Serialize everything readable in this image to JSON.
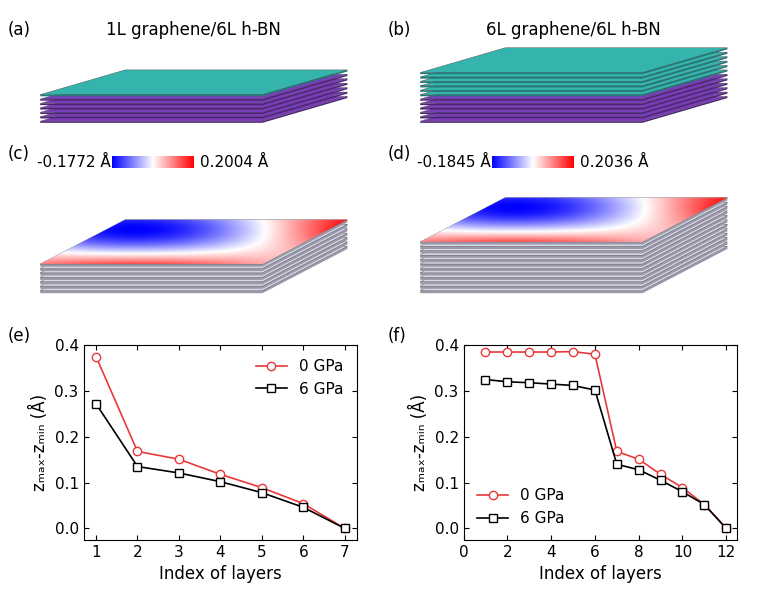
{
  "panels": [
    {
      "label": "(a)",
      "title": "1L graphene/6L h-BN",
      "graphene_layers": 1,
      "hbn_layers": 6
    },
    {
      "label": "(b)",
      "title": "6L graphene/6L h-BN",
      "graphene_layers": 6,
      "hbn_layers": 6
    },
    {
      "label": "(c)",
      "layers": 7,
      "colorbar": {
        "range": [
          -0.1772,
          0.2004
        ],
        "labels": [
          "-0.1772 Å",
          "0.2004 Å"
        ]
      }
    },
    {
      "label": "(d)",
      "layers": 12,
      "colorbar": {
        "range": [
          -0.1845,
          0.2036
        ],
        "labels": [
          "-0.1845 Å",
          "0.2036 Å"
        ]
      }
    }
  ],
  "chart_data": [
    {
      "type": "line",
      "title": "(e)",
      "x_label": "Index of layers",
      "y_label": "zₘₐₓ-zₘᵢₙ (Å)",
      "x": [
        1,
        2,
        3,
        4,
        5,
        6,
        7
      ],
      "series": [
        {
          "name": "0 GPa",
          "color": "#e8393a",
          "marker": "circle",
          "values": [
            0.375,
            0.168,
            0.151,
            0.118,
            0.089,
            0.054,
            0.0
          ]
        },
        {
          "name": "6 GPa",
          "color": "#000000",
          "marker": "square",
          "values": [
            0.272,
            0.135,
            0.121,
            0.102,
            0.078,
            0.046,
            0.0
          ]
        }
      ],
      "xlim": [
        0.7,
        7.3
      ],
      "xticks": [
        1,
        2,
        3,
        4,
        5,
        6,
        7
      ],
      "ylim": [
        -0.025,
        0.4
      ],
      "yticks": [
        {
          "value": 0,
          "label": "0.0"
        },
        {
          "value": 0.1,
          "label": "0.1"
        },
        {
          "value": 0.2,
          "label": "0.2"
        },
        {
          "value": 0.3,
          "label": "0.3"
        },
        {
          "value": 0.4,
          "label": "0.4"
        }
      ],
      "legend": "upper right"
    },
    {
      "type": "line",
      "title": "(f)",
      "x_label": "Index of layers",
      "y_label": "zₘₐₓ-zₘᵢₙ (Å)",
      "x": [
        1,
        2,
        3,
        4,
        5,
        6,
        7,
        8,
        9,
        10,
        11,
        12
      ],
      "series": [
        {
          "name": "0 GPa",
          "color": "#e8393a",
          "marker": "circle",
          "values": [
            0.385,
            0.385,
            0.385,
            0.385,
            0.386,
            0.38,
            0.168,
            0.151,
            0.118,
            0.089,
            0.052,
            0.0
          ]
        },
        {
          "name": "6 GPa",
          "color": "#000000",
          "marker": "square",
          "values": [
            0.325,
            0.32,
            0.318,
            0.315,
            0.312,
            0.302,
            0.14,
            0.128,
            0.105,
            0.08,
            0.052,
            0.0
          ]
        }
      ],
      "xlim": [
        0,
        12.5
      ],
      "xticks": [
        0,
        2,
        4,
        6,
        8,
        10,
        12
      ],
      "ylim": [
        -0.025,
        0.4
      ],
      "yticks": [
        {
          "value": 0,
          "label": "0.0"
        },
        {
          "value": 0.1,
          "label": "0.1"
        },
        {
          "value": 0.2,
          "label": "0.2"
        },
        {
          "value": 0.3,
          "label": "0.3"
        },
        {
          "value": 0.4,
          "label": "0.4"
        }
      ],
      "legend": "lower left"
    }
  ]
}
